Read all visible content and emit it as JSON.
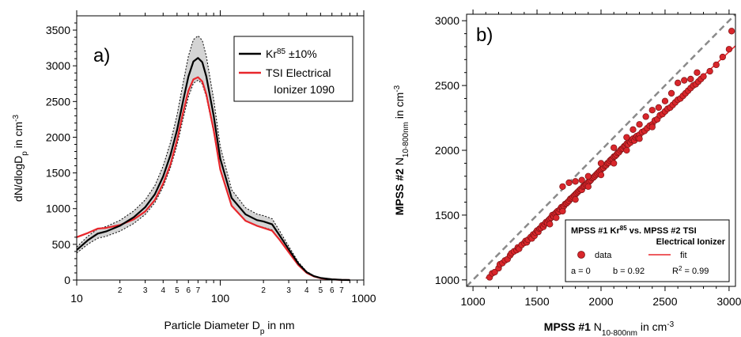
{
  "chart_data": [
    {
      "type": "line",
      "panel_label": "a)",
      "xlabel_main": "Particle Diameter D",
      "xlabel_sub": "p",
      "xlabel_rest": " in nm",
      "ylabel_main": "dN/dlogD",
      "ylabel_sub": "p",
      "ylabel_mid": " in cm",
      "ylabel_sup": "-3",
      "xscale": "log",
      "xlim": [
        10,
        1000
      ],
      "ylim": [
        0,
        3700
      ],
      "x_major_ticks": [
        {
          "value": 10,
          "label": "10"
        },
        {
          "value": 100,
          "label": "100"
        },
        {
          "value": 1000,
          "label": "1000"
        }
      ],
      "x_minor_ticks": [
        {
          "value": 20,
          "label": "2"
        },
        {
          "value": 30,
          "label": "3"
        },
        {
          "value": 40,
          "label": "4"
        },
        {
          "value": 50,
          "label": "5"
        },
        {
          "value": 60,
          "label": "6"
        },
        {
          "value": 70,
          "label": "7"
        },
        {
          "value": 200,
          "label": "2"
        },
        {
          "value": 300,
          "label": "3"
        },
        {
          "value": 400,
          "label": "4"
        },
        {
          "value": 500,
          "label": "5"
        },
        {
          "value": 600,
          "label": "6"
        },
        {
          "value": 700,
          "label": "7"
        }
      ],
      "y_ticks": [
        {
          "value": 0,
          "label": "0"
        },
        {
          "value": 500,
          "label": "500"
        },
        {
          "value": 1000,
          "label": "1000"
        },
        {
          "value": 1500,
          "label": "1500"
        },
        {
          "value": 2000,
          "label": "2000"
        },
        {
          "value": 2500,
          "label": "2500"
        },
        {
          "value": 3000,
          "label": "3000"
        },
        {
          "value": 3500,
          "label": "3500"
        }
      ],
      "legend": {
        "position": "top-right",
        "entries": [
          {
            "label_main": "Kr",
            "label_sup": "85",
            "label_rest": " ±10%",
            "color": "#000000"
          },
          {
            "label_line1": "TSI Electrical",
            "label_line2": "Ionizer 1090",
            "color": "#e8262b"
          }
        ]
      },
      "series": [
        {
          "name": "Kr85",
          "color": "#000000",
          "band": "±10%",
          "x": [
            10,
            12,
            14,
            16,
            20,
            25,
            30,
            35,
            40,
            45,
            50,
            55,
            60,
            65,
            70,
            75,
            80,
            90,
            100,
            120,
            150,
            180,
            200,
            230,
            260,
            300,
            350,
            400,
            450,
            500,
            600,
            700,
            800
          ],
          "y": [
            420,
            560,
            650,
            680,
            760,
            880,
            1020,
            1200,
            1450,
            1750,
            2100,
            2500,
            2850,
            3060,
            3110,
            3050,
            2850,
            2300,
            1700,
            1150,
            920,
            840,
            820,
            780,
            620,
            430,
            230,
            110,
            55,
            30,
            10,
            3,
            0
          ]
        },
        {
          "name": "TSI Electrical Ionizer 1090",
          "color": "#e8262b",
          "x": [
            10,
            12,
            14,
            16,
            20,
            25,
            30,
            35,
            40,
            45,
            50,
            55,
            60,
            65,
            70,
            75,
            80,
            90,
            100,
            120,
            150,
            180,
            200,
            230,
            260,
            300,
            350,
            400,
            450,
            500,
            600,
            700,
            800
          ],
          "y": [
            600,
            660,
            720,
            730,
            770,
            850,
            960,
            1120,
            1350,
            1620,
            1960,
            2340,
            2650,
            2810,
            2840,
            2780,
            2600,
            2100,
            1550,
            1040,
            830,
            760,
            730,
            690,
            560,
            390,
            210,
            100,
            50,
            25,
            8,
            2,
            0
          ]
        }
      ]
    },
    {
      "type": "scatter",
      "panel_label": "b)",
      "xlabel_bold": "MPSS #1",
      "xlabel_main": " N",
      "xlabel_sub": "10-800nm",
      "xlabel_mid": " in cm",
      "xlabel_sup": "-3",
      "ylabel_bold": "MPSS #2",
      "ylabel_main": " N",
      "ylabel_sub": "10-800nm",
      "ylabel_mid": " in cm",
      "ylabel_sup": "-3",
      "xlim": [
        950,
        3050
      ],
      "ylim": [
        950,
        3050
      ],
      "x_ticks": [
        {
          "value": 1000,
          "label": "1000"
        },
        {
          "value": 1500,
          "label": "1500"
        },
        {
          "value": 2000,
          "label": "2000"
        },
        {
          "value": 2500,
          "label": "2500"
        },
        {
          "value": 3000,
          "label": "3000"
        }
      ],
      "y_ticks": [
        {
          "value": 1000,
          "label": "1000"
        },
        {
          "value": 1500,
          "label": "1500"
        },
        {
          "value": 2000,
          "label": "2000"
        },
        {
          "value": 2500,
          "label": "2500"
        },
        {
          "value": 3000,
          "label": "3000"
        }
      ],
      "one_to_one_line": {
        "color": "#888888",
        "style": "dashed"
      },
      "fit": {
        "a": 0,
        "b": 0.92,
        "r2": 0.99,
        "color": "#e8262b"
      },
      "legend": {
        "position": "bottom-right",
        "title_line1_main": "MPSS #1 Kr",
        "title_line1_sup": "85",
        "title_line1_rest": " vs. MPSS #2 TSI",
        "title_line2": "Electrical Ionizer",
        "data_label": "data",
        "fit_label": "fit",
        "stats_a": "a = 0",
        "stats_b": "b = 0.92",
        "stats_r2_main": "R",
        "stats_r2_sup": "2",
        "stats_r2_rest": " = 0.99"
      },
      "series": [
        {
          "name": "data",
          "color": "#d9262b",
          "points": [
            [
              1130,
              1020
            ],
            [
              1150,
              1050
            ],
            [
              1170,
              1060
            ],
            [
              1200,
              1090
            ],
            [
              1210,
              1120
            ],
            [
              1230,
              1130
            ],
            [
              1250,
              1150
            ],
            [
              1270,
              1160
            ],
            [
              1290,
              1190
            ],
            [
              1300,
              1205
            ],
            [
              1320,
              1220
            ],
            [
              1340,
              1230
            ],
            [
              1350,
              1250
            ],
            [
              1360,
              1240
            ],
            [
              1380,
              1270
            ],
            [
              1400,
              1285
            ],
            [
              1410,
              1300
            ],
            [
              1420,
              1290
            ],
            [
              1430,
              1310
            ],
            [
              1450,
              1330
            ],
            [
              1460,
              1320
            ],
            [
              1470,
              1350
            ],
            [
              1480,
              1340
            ],
            [
              1490,
              1365
            ],
            [
              1500,
              1380
            ],
            [
              1510,
              1370
            ],
            [
              1520,
              1395
            ],
            [
              1530,
              1400
            ],
            [
              1540,
              1420
            ],
            [
              1550,
              1410
            ],
            [
              1560,
              1430
            ],
            [
              1570,
              1445
            ],
            [
              1580,
              1440
            ],
            [
              1590,
              1460
            ],
            [
              1600,
              1470
            ],
            [
              1610,
              1480
            ],
            [
              1620,
              1500
            ],
            [
              1630,
              1490
            ],
            [
              1640,
              1510
            ],
            [
              1650,
              1520
            ],
            [
              1660,
              1530
            ],
            [
              1670,
              1525
            ],
            [
              1680,
              1545
            ],
            [
              1690,
              1560
            ],
            [
              1700,
              1555
            ],
            [
              1710,
              1570
            ],
            [
              1720,
              1585
            ],
            [
              1730,
              1590
            ],
            [
              1740,
              1600
            ],
            [
              1750,
              1610
            ],
            [
              1760,
              1625
            ],
            [
              1770,
              1630
            ],
            [
              1780,
              1640
            ],
            [
              1790,
              1650
            ],
            [
              1800,
              1660
            ],
            [
              1810,
              1670
            ],
            [
              1820,
              1680
            ],
            [
              1830,
              1690
            ],
            [
              1840,
              1700
            ],
            [
              1850,
              1695
            ],
            [
              1860,
              1720
            ],
            [
              1870,
              1725
            ],
            [
              1880,
              1735
            ],
            [
              1890,
              1740
            ],
            [
              1900,
              1755
            ],
            [
              1910,
              1760
            ],
            [
              1920,
              1770
            ],
            [
              1930,
              1785
            ],
            [
              1940,
              1790
            ],
            [
              1950,
              1800
            ],
            [
              1960,
              1810
            ],
            [
              1970,
              1820
            ],
            [
              1980,
              1830
            ],
            [
              1990,
              1840
            ],
            [
              2000,
              1850
            ],
            [
              2010,
              1860
            ],
            [
              2020,
              1865
            ],
            [
              2030,
              1880
            ],
            [
              2040,
              1885
            ],
            [
              2050,
              1900
            ],
            [
              2060,
              1905
            ],
            [
              2070,
              1920
            ],
            [
              2080,
              1930
            ],
            [
              2090,
              1935
            ],
            [
              2100,
              1950
            ],
            [
              2110,
              1955
            ],
            [
              2120,
              1965
            ],
            [
              2130,
              1980
            ],
            [
              2140,
              1985
            ],
            [
              2150,
              2000
            ],
            [
              2160,
              2010
            ],
            [
              2170,
              2015
            ],
            [
              2180,
              2030
            ],
            [
              2190,
              2035
            ],
            [
              2200,
              2050
            ],
            [
              2210,
              2045
            ],
            [
              2220,
              2070
            ],
            [
              2230,
              2060
            ],
            [
              2240,
              2080
            ],
            [
              2250,
              2090
            ],
            [
              2260,
              2075
            ],
            [
              2270,
              2100
            ],
            [
              2280,
              2110
            ],
            [
              2290,
              2095
            ],
            [
              2300,
              2120
            ],
            [
              2320,
              2140
            ],
            [
              2340,
              2150
            ],
            [
              2360,
              2170
            ],
            [
              2380,
              2190
            ],
            [
              2400,
              2200
            ],
            [
              2420,
              2230
            ],
            [
              2440,
              2240
            ],
            [
              2460,
              2270
            ],
            [
              2480,
              2280
            ],
            [
              2500,
              2300
            ],
            [
              2520,
              2320
            ],
            [
              2540,
              2330
            ],
            [
              2560,
              2350
            ],
            [
              2580,
              2370
            ],
            [
              2600,
              2390
            ],
            [
              2620,
              2400
            ],
            [
              2640,
              2420
            ],
            [
              2660,
              2440
            ],
            [
              2680,
              2460
            ],
            [
              2700,
              2480
            ],
            [
              2720,
              2500
            ],
            [
              2740,
              2510
            ],
            [
              2760,
              2530
            ],
            [
              2780,
              2550
            ],
            [
              2800,
              2570
            ],
            [
              2850,
              2610
            ],
            [
              2900,
              2660
            ],
            [
              2950,
              2720
            ],
            [
              3000,
              2780
            ],
            [
              3020,
              2920
            ],
            [
              1700,
              1720
            ],
            [
              1750,
              1750
            ],
            [
              1800,
              1760
            ],
            [
              1850,
              1770
            ],
            [
              1900,
              1800
            ],
            [
              2000,
              1900
            ],
            [
              2100,
              2020
            ],
            [
              2200,
              2100
            ],
            [
              2250,
              2160
            ],
            [
              2300,
              2200
            ],
            [
              2350,
              2260
            ],
            [
              2400,
              2310
            ],
            [
              2450,
              2330
            ],
            [
              2500,
              2380
            ],
            [
              2550,
              2440
            ],
            [
              2600,
              2520
            ],
            [
              2650,
              2540
            ],
            [
              2700,
              2550
            ],
            [
              2750,
              2600
            ],
            [
              1600,
              1430
            ],
            [
              1650,
              1480
            ],
            [
              1700,
              1530
            ],
            [
              1800,
              1620
            ],
            [
              1900,
              1720
            ],
            [
              2000,
              1810
            ],
            [
              2100,
              1900
            ],
            [
              2200,
              2000
            ],
            [
              2300,
              2090
            ],
            [
              2400,
              2180
            ]
          ]
        }
      ]
    }
  ]
}
